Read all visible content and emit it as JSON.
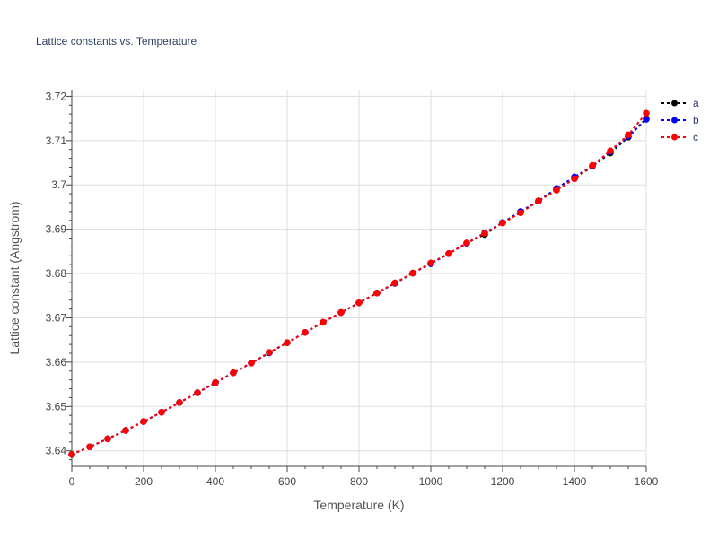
{
  "chart_data": {
    "type": "line",
    "title": "Lattice constants vs. Temperature",
    "xlabel": "Temperature (K)",
    "ylabel": "Lattice constant (Angstrom)",
    "xlim": [
      0,
      1600
    ],
    "ylim": [
      3.6365,
      3.7215
    ],
    "x_ticks": [
      0,
      200,
      400,
      600,
      800,
      1000,
      1200,
      1400,
      1600
    ],
    "y_ticks": [
      3.64,
      3.65,
      3.66,
      3.67,
      3.68,
      3.69,
      3.7,
      3.71,
      3.72
    ],
    "grid": true,
    "legend_position": "top-right",
    "x": [
      0,
      50,
      100,
      150,
      200,
      250,
      300,
      350,
      400,
      450,
      500,
      550,
      600,
      650,
      700,
      750,
      800,
      850,
      900,
      950,
      1000,
      1050,
      1100,
      1150,
      1200,
      1250,
      1300,
      1350,
      1400,
      1450,
      1500,
      1550,
      1600
    ],
    "series": [
      {
        "name": "a",
        "color": "#000000",
        "values": [
          3.6392,
          3.6409,
          3.6427,
          3.6446,
          3.6466,
          3.6487,
          3.6509,
          3.6531,
          3.6554,
          3.6576,
          3.6598,
          3.6621,
          3.6644,
          3.6667,
          3.669,
          3.6712,
          3.6734,
          3.6756,
          3.6778,
          3.6801,
          3.6823,
          3.6845,
          3.6869,
          3.6888,
          3.6915,
          3.6938,
          3.6964,
          3.6989,
          3.7014,
          3.7042,
          3.7072,
          3.7108,
          3.715
        ]
      },
      {
        "name": "b",
        "color": "#0000ff",
        "values": [
          3.6392,
          3.6409,
          3.6427,
          3.6446,
          3.6466,
          3.6487,
          3.6509,
          3.6531,
          3.6553,
          3.6576,
          3.6598,
          3.6621,
          3.6644,
          3.6667,
          3.669,
          3.6712,
          3.6734,
          3.6756,
          3.6778,
          3.6801,
          3.6822,
          3.6845,
          3.6868,
          3.6892,
          3.6915,
          3.694,
          3.6964,
          3.6992,
          3.7018,
          3.7043,
          3.7075,
          3.711,
          3.7148
        ]
      },
      {
        "name": "c",
        "color": "#ff0000",
        "values": [
          3.6392,
          3.6409,
          3.6427,
          3.6446,
          3.6466,
          3.6487,
          3.6509,
          3.6531,
          3.6554,
          3.6576,
          3.6598,
          3.6622,
          3.6644,
          3.6667,
          3.669,
          3.6712,
          3.6734,
          3.6756,
          3.6779,
          3.6801,
          3.6824,
          3.6845,
          3.6869,
          3.6891,
          3.6914,
          3.6937,
          3.6964,
          3.6988,
          3.7014,
          3.7044,
          3.7077,
          3.7113,
          3.7162
        ]
      }
    ]
  }
}
